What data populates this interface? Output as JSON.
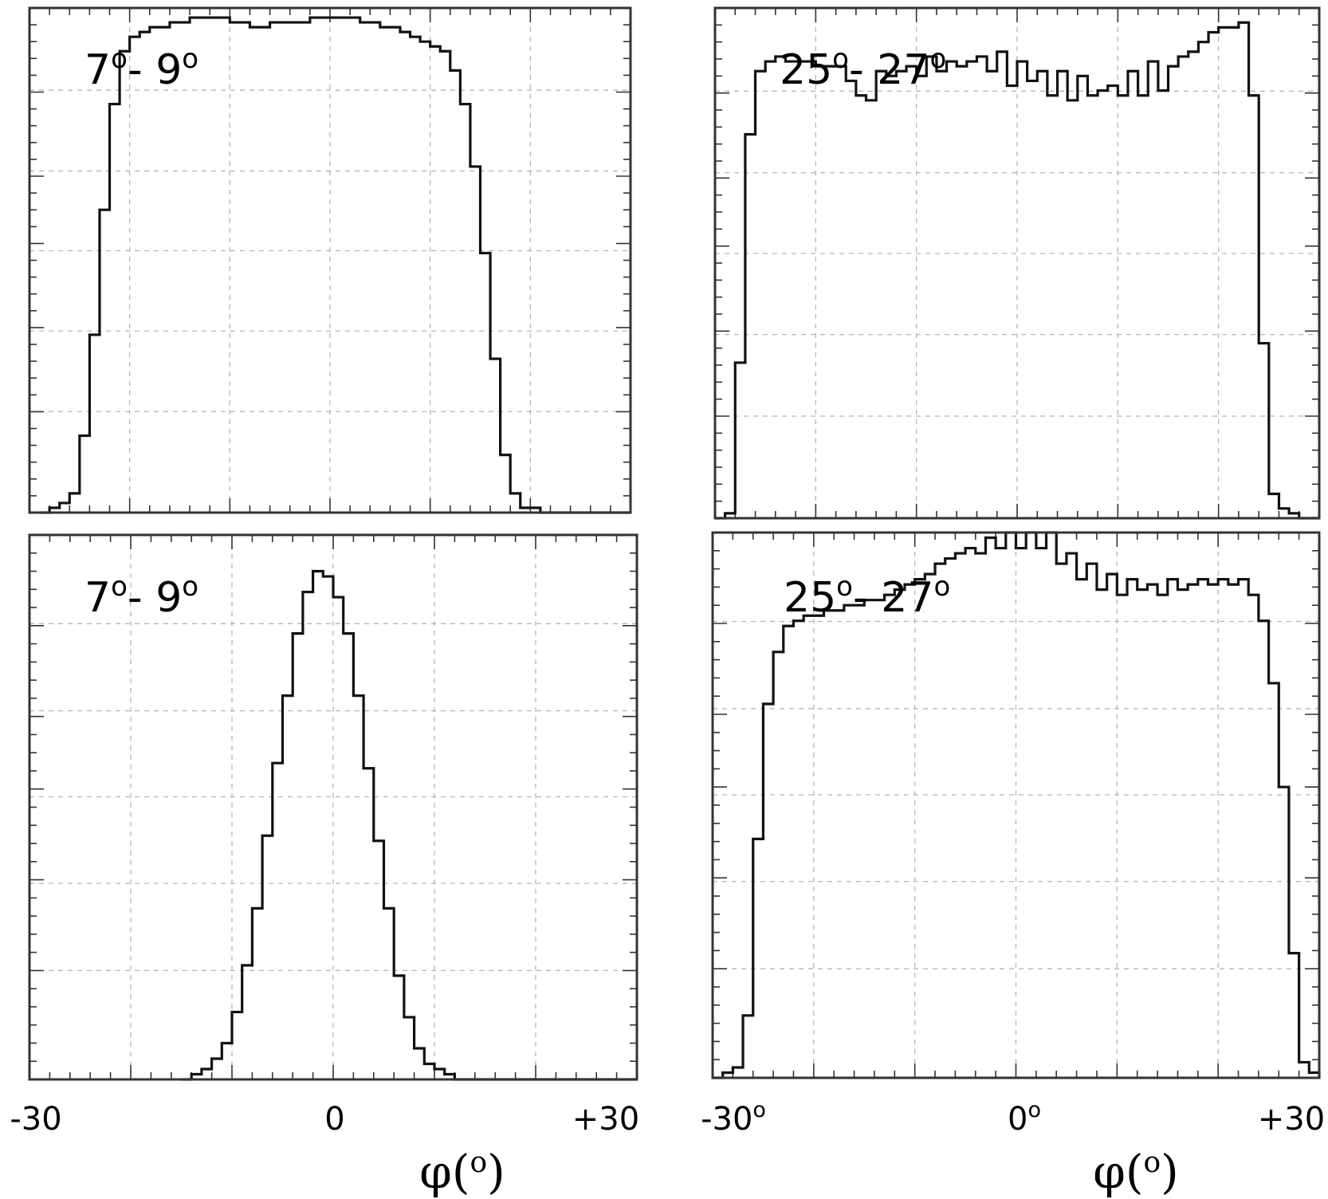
{
  "chart_data": [
    {
      "type": "histogram",
      "panel": "top-left",
      "label": {
        "main": "7",
        "sup1": "o",
        "mid": "- 9",
        "sup2": "o"
      },
      "xlim": [
        -30,
        30
      ],
      "ylim": [
        0,
        1.05
      ],
      "grid": true,
      "bin_width": 1,
      "x_start": -28,
      "values": [
        0.01,
        0.02,
        0.04,
        0.16,
        0.37,
        0.63,
        0.85,
        0.96,
        0.99,
        1.0,
        1.01,
        1.01,
        1.02,
        1.02,
        1.03,
        1.03,
        1.03,
        1.03,
        1.02,
        1.02,
        1.01,
        1.01,
        1.02,
        1.02,
        1.02,
        1.02,
        1.03,
        1.03,
        1.03,
        1.03,
        1.03,
        1.02,
        1.02,
        1.01,
        1.01,
        1.0,
        0.99,
        0.98,
        0.97,
        0.96,
        0.92,
        0.85,
        0.72,
        0.54,
        0.32,
        0.12,
        0.04,
        0.01,
        0.01,
        0.0
      ]
    },
    {
      "type": "histogram",
      "panel": "top-right",
      "label": {
        "main": "25",
        "sup1": "o",
        "mid": "- 27",
        "sup2": "o"
      },
      "xlim": [
        -30,
        30
      ],
      "ylim": [
        0,
        1.05
      ],
      "grid": true,
      "bin_width": 1,
      "x_start": -29,
      "values": [
        0.01,
        0.32,
        0.79,
        0.92,
        0.94,
        0.95,
        0.94,
        0.94,
        0.94,
        0.93,
        0.93,
        0.93,
        0.9,
        0.87,
        0.86,
        0.92,
        0.91,
        0.92,
        0.93,
        0.91,
        0.95,
        0.92,
        0.94,
        0.93,
        0.94,
        0.95,
        0.92,
        0.96,
        0.89,
        0.94,
        0.9,
        0.92,
        0.87,
        0.92,
        0.86,
        0.91,
        0.87,
        0.88,
        0.89,
        0.87,
        0.92,
        0.87,
        0.94,
        0.88,
        0.93,
        0.95,
        0.96,
        0.98,
        1.0,
        1.01,
        1.01,
        1.02,
        0.87,
        0.36,
        0.05,
        0.02,
        0.01,
        0.0
      ]
    },
    {
      "type": "histogram",
      "panel": "bottom-left",
      "label": {
        "main": "7",
        "sup1": "o",
        "mid": "- 9",
        "sup2": "o"
      },
      "xlim": [
        -30,
        30
      ],
      "ylim": [
        0,
        1.05
      ],
      "grid": true,
      "bin_width": 1,
      "x_start": -14,
      "values": [
        0.01,
        0.02,
        0.04,
        0.07,
        0.13,
        0.22,
        0.33,
        0.47,
        0.61,
        0.74,
        0.86,
        0.94,
        0.98,
        0.97,
        0.93,
        0.86,
        0.74,
        0.6,
        0.46,
        0.33,
        0.2,
        0.12,
        0.06,
        0.03,
        0.02,
        0.01,
        0.0
      ]
    },
    {
      "type": "histogram",
      "panel": "bottom-right",
      "label": {
        "main": "25",
        "sup1": "o",
        "mid": "- 27",
        "sup2": "o"
      },
      "xlim": [
        -30,
        30
      ],
      "ylim": [
        0,
        1.05
      ],
      "grid": true,
      "bin_width": 1,
      "x_start": -29,
      "values": [
        0.01,
        0.02,
        0.12,
        0.46,
        0.72,
        0.82,
        0.87,
        0.88,
        0.89,
        0.89,
        0.9,
        0.9,
        0.91,
        0.91,
        0.92,
        0.92,
        0.93,
        0.94,
        0.95,
        0.96,
        0.97,
        0.99,
        1.0,
        1.01,
        1.02,
        1.01,
        1.04,
        1.02,
        1.05,
        1.02,
        1.05,
        1.02,
        1.05,
        0.99,
        1.01,
        0.96,
        0.99,
        0.94,
        0.97,
        0.93,
        0.96,
        0.94,
        0.95,
        0.93,
        0.96,
        0.94,
        0.95,
        0.96,
        0.95,
        0.96,
        0.95,
        0.96,
        0.93,
        0.88,
        0.76,
        0.56,
        0.24,
        0.03,
        0.01,
        0.0
      ]
    }
  ],
  "axes": {
    "left": {
      "tick_min": "-30",
      "tick_mid": "0",
      "tick_max": "+30",
      "title_main": "φ(",
      "title_sup": "o",
      "title_end": ")"
    },
    "right": {
      "tick_min": "-30",
      "tick_min_sup": "o",
      "tick_mid": "0",
      "tick_mid_sup": "o",
      "tick_max": "+30",
      "title_main": "φ(",
      "title_sup": "o",
      "title_end": ")"
    }
  },
  "colors": {
    "line": "#111111",
    "frame": "#333333",
    "grid": "#b5b5b5"
  }
}
